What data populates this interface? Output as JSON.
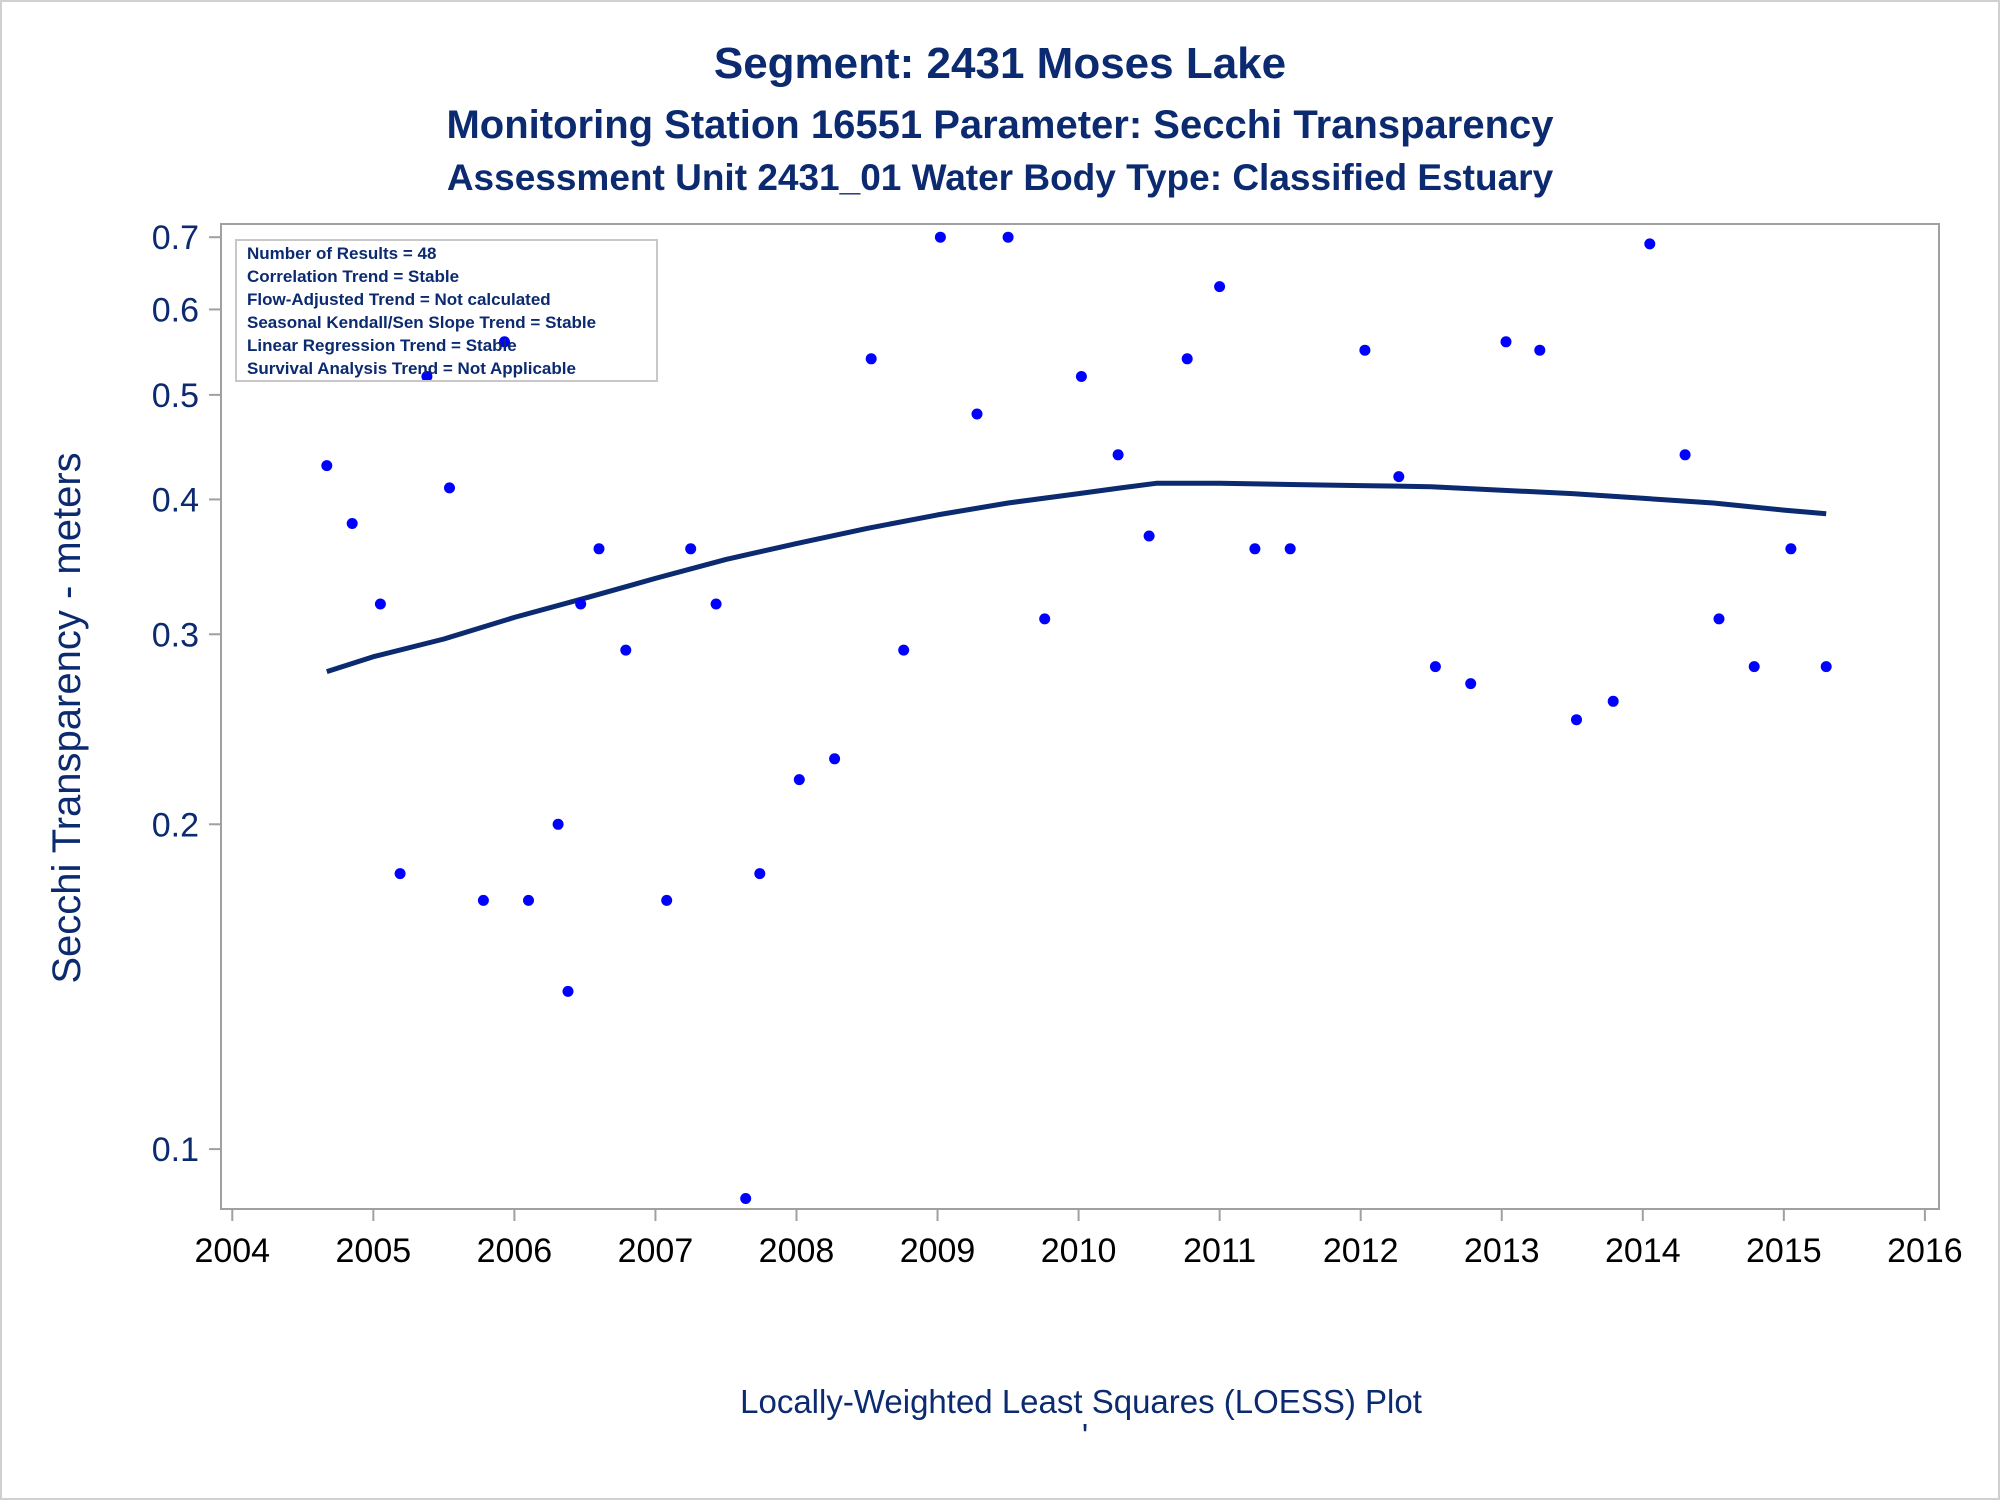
{
  "chart_data": {
    "type": "scatter",
    "title": "Segment: 2431  Moses Lake",
    "subtitle": "Monitoring Station 16551 Parameter: Secchi Transparency",
    "subtitle2": "Assessment Unit 2431_01   Water Body Type: Classified Estuary",
    "ylabel": "Secchi Transparency - meters",
    "xlabel": "Locally-Weighted Least Squares (LOESS) Plot",
    "footnote_mark": "'",
    "y_scale": "log",
    "xlim": [
      2003.92,
      2016.1
    ],
    "ylim": [
      0.088,
      0.72
    ],
    "x_ticks": [
      "2004",
      "2005",
      "2006",
      "2007",
      "2008",
      "2009",
      "2010",
      "2011",
      "2012",
      "2013",
      "2014",
      "2015",
      "2016"
    ],
    "y_ticks": [
      "0.1",
      "0.2",
      "0.3",
      "0.4",
      "0.5",
      "0.6",
      "0.7"
    ],
    "grid": false,
    "legend": "none",
    "stats_box": {
      "placement": "top-left",
      "lines": [
        "Number of Results = 48",
        "Correlation Trend = Stable",
        "Flow-Adjusted Trend = Not calculated",
        "Seasonal Kendall/Sen Slope Trend = Stable",
        "Linear Regression Trend = Stable",
        "Survival Analysis Trend = Not Applicable"
      ]
    },
    "colors": {
      "points": "#0000ff",
      "loess": "#0b2a6f",
      "text": "#0b2a6f",
      "frame": "#a0a0a0"
    },
    "series": [
      {
        "type": "scatter",
        "points": [
          [
            2004.67,
            0.43
          ],
          [
            2004.85,
            0.38
          ],
          [
            2005.05,
            0.32
          ],
          [
            2005.19,
            0.18
          ],
          [
            2005.38,
            0.52
          ],
          [
            2005.54,
            0.41
          ],
          [
            2005.78,
            0.17
          ],
          [
            2005.93,
            0.56
          ],
          [
            2006.1,
            0.17
          ],
          [
            2006.31,
            0.2
          ],
          [
            2006.38,
            0.14
          ],
          [
            2006.47,
            0.32
          ],
          [
            2006.6,
            0.36
          ],
          [
            2006.79,
            0.29
          ],
          [
            2007.08,
            0.17
          ],
          [
            2007.25,
            0.36
          ],
          [
            2007.43,
            0.32
          ],
          [
            2007.64,
            0.09
          ],
          [
            2007.74,
            0.18
          ],
          [
            2008.02,
            0.22
          ],
          [
            2008.27,
            0.23
          ],
          [
            2008.53,
            0.54
          ],
          [
            2008.76,
            0.29
          ],
          [
            2009.02,
            0.7
          ],
          [
            2009.28,
            0.48
          ],
          [
            2009.5,
            0.7
          ],
          [
            2009.76,
            0.31
          ],
          [
            2010.02,
            0.52
          ],
          [
            2010.28,
            0.44
          ],
          [
            2010.5,
            0.37
          ],
          [
            2010.77,
            0.54
          ],
          [
            2011.0,
            0.63
          ],
          [
            2011.25,
            0.36
          ],
          [
            2011.5,
            0.36
          ],
          [
            2012.03,
            0.55
          ],
          [
            2012.27,
            0.42
          ],
          [
            2012.53,
            0.28
          ],
          [
            2012.78,
            0.27
          ],
          [
            2013.03,
            0.56
          ],
          [
            2013.27,
            0.55
          ],
          [
            2013.53,
            0.25
          ],
          [
            2013.79,
            0.26
          ],
          [
            2014.05,
            0.69
          ],
          [
            2014.3,
            0.44
          ],
          [
            2014.54,
            0.31
          ],
          [
            2014.79,
            0.28
          ],
          [
            2015.05,
            0.36
          ],
          [
            2015.3,
            0.28
          ]
        ]
      },
      {
        "type": "line",
        "points": [
          [
            2004.67,
            0.277
          ],
          [
            2005.0,
            0.286
          ],
          [
            2005.5,
            0.297
          ],
          [
            2006.0,
            0.311
          ],
          [
            2006.5,
            0.324
          ],
          [
            2007.0,
            0.338
          ],
          [
            2007.5,
            0.352
          ],
          [
            2008.0,
            0.364
          ],
          [
            2008.5,
            0.376
          ],
          [
            2009.0,
            0.387
          ],
          [
            2009.5,
            0.397
          ],
          [
            2010.0,
            0.405
          ],
          [
            2010.3,
            0.41
          ],
          [
            2010.55,
            0.414
          ],
          [
            2011.0,
            0.414
          ],
          [
            2011.5,
            0.413
          ],
          [
            2012.0,
            0.412
          ],
          [
            2012.5,
            0.411
          ],
          [
            2013.0,
            0.408
          ],
          [
            2013.5,
            0.405
          ],
          [
            2014.0,
            0.401
          ],
          [
            2014.5,
            0.397
          ],
          [
            2015.0,
            0.391
          ],
          [
            2015.3,
            0.388
          ]
        ]
      }
    ]
  }
}
